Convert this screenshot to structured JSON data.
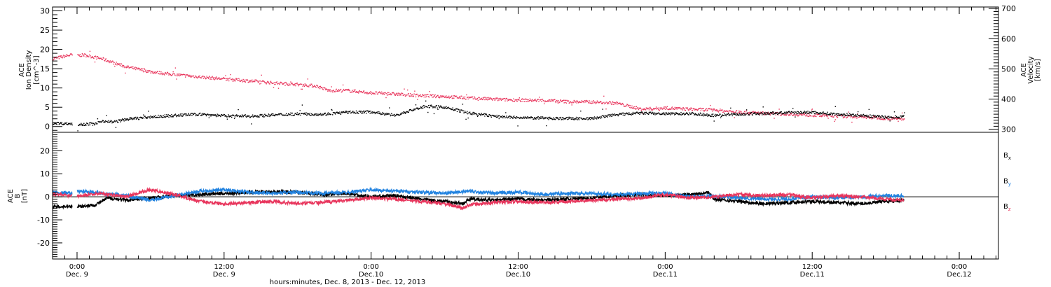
{
  "colors": {
    "black": "#000000",
    "pink": "#e8365d",
    "blue": "#2283e0"
  },
  "x_axis": {
    "title": "hours:minutes, Dec. 8, 2013 - Dec. 12, 2013",
    "ticks": [
      {
        "hours": 24,
        "time": "0:00",
        "date": "Dec. 9"
      },
      {
        "hours": 36,
        "time": "12:00",
        "date": "Dec. 9"
      },
      {
        "hours": 48,
        "time": "0:00",
        "date": "Dec.10"
      },
      {
        "hours": 60,
        "time": "12:00",
        "date": "Dec.10"
      },
      {
        "hours": 72,
        "time": "0:00",
        "date": "Dec.11"
      },
      {
        "hours": 84,
        "time": "12:00",
        "date": "Dec.11"
      },
      {
        "hours": 96,
        "time": "0:00",
        "date": "Dec.12"
      }
    ]
  },
  "chart_data": [
    {
      "type": "scatter",
      "panel": "plasma",
      "x_unit": "hours since Dec. 8, 2013 0:00",
      "xlim": [
        22.0,
        99.2
      ],
      "left_axis": {
        "label_lines": [
          "ACE",
          "Ion Density",
          "[cm^-3]"
        ],
        "ylim": [
          -1.5,
          31
        ],
        "ticks": [
          0,
          5,
          10,
          15,
          20,
          25,
          30
        ]
      },
      "right_axis": {
        "label_lines": [
          "ACE",
          "Velocity",
          "[km/s]"
        ],
        "ylim": [
          290,
          705
        ],
        "ticks": [
          300,
          400,
          500,
          600,
          700
        ]
      },
      "series": [
        {
          "axis": "right",
          "color": "#e8365d",
          "x": [
            22.0,
            23.5,
            24.0,
            24.5,
            26.0,
            28.0,
            30.0,
            32.0,
            34.0,
            36.0,
            38.0,
            40.0,
            42.0,
            43.5,
            44.5,
            46.0,
            48.0,
            50.0,
            52.0,
            54.0,
            56.0,
            58.0,
            60.0,
            62.0,
            64.0,
            66.0,
            68.0,
            70.0,
            72.0,
            74.0,
            76.0,
            78.0,
            80.0,
            82.0,
            84.0,
            86.0,
            88.0,
            90.0,
            91.5
          ],
          "y": [
            535,
            548,
            545,
            548,
            535,
            508,
            492,
            482,
            475,
            468,
            462,
            455,
            450,
            445,
            430,
            430,
            422,
            418,
            413,
            410,
            405,
            401,
            398,
            397,
            393,
            392,
            388,
            368,
            372,
            368,
            365,
            358,
            355,
            352,
            348,
            345,
            342,
            338,
            335
          ]
        },
        {
          "axis": "left",
          "color": "#000000",
          "x": [
            22.0,
            23.0,
            24.0,
            25.5,
            26.0,
            27.0,
            28.0,
            30.0,
            32.0,
            34.0,
            36.0,
            38.0,
            40.0,
            42.0,
            44.0,
            46.0,
            48.0,
            50.0,
            51.5,
            52.5,
            54.0,
            56.0,
            58.0,
            60.0,
            62.0,
            64.0,
            66.0,
            68.0,
            70.0,
            72.0,
            74.0,
            76.0,
            78.0,
            80.0,
            82.0,
            84.0,
            86.0,
            88.0,
            90.0,
            91.5
          ],
          "y": [
            1.0,
            0.9,
            0.7,
            0.8,
            1.6,
            1.3,
            2.0,
            2.6,
            3.0,
            3.3,
            2.9,
            2.8,
            3.1,
            3.4,
            3.3,
            3.8,
            3.9,
            3.0,
            4.6,
            5.4,
            5.1,
            3.6,
            2.8,
            2.4,
            2.3,
            2.2,
            2.2,
            3.2,
            3.6,
            3.4,
            3.5,
            3.0,
            3.3,
            3.5,
            3.7,
            3.8,
            3.3,
            3.0,
            2.5,
            2.7
          ]
        }
      ]
    },
    {
      "type": "line",
      "panel": "magnetic field",
      "x_unit": "hours since Dec. 8, 2013 0:00",
      "xlim": [
        22.0,
        99.2
      ],
      "left_axis": {
        "label_lines": [
          "ACE",
          "B",
          "[nT]"
        ],
        "ylim": [
          -27,
          28
        ],
        "ticks": [
          -20,
          -10,
          0,
          10,
          20
        ]
      },
      "legend": [
        {
          "base": "B",
          "sub": "x",
          "color": "#000000"
        },
        {
          "base": "B",
          "sub": "y",
          "color": "#2283e0"
        },
        {
          "base": "B",
          "sub": "z",
          "color": "#e8365d"
        }
      ],
      "series": [
        {
          "name": "Bx",
          "color": "#000000",
          "x": [
            22.0,
            23.5,
            24.0,
            25.5,
            26.5,
            28.0,
            30.0,
            32.0,
            34.0,
            36.0,
            38.0,
            40.0,
            42.0,
            44.0,
            46.0,
            48.0,
            50.0,
            52.0,
            54.0,
            55.5,
            56.0,
            58.0,
            60.0,
            62.0,
            64.0,
            66.0,
            68.0,
            70.0,
            72.0,
            74.0,
            75.5,
            76.0,
            78.0,
            80.0,
            82.0,
            84.0,
            86.0,
            88.0,
            90.0,
            91.5
          ],
          "y": [
            -4.5,
            -4.0,
            -4.3,
            -3.5,
            -0.5,
            -1.5,
            -0.5,
            0.5,
            1.0,
            1.5,
            2.0,
            2.2,
            2.0,
            1.0,
            1.5,
            0.0,
            0.5,
            -1.0,
            -2.0,
            -3.0,
            -1.0,
            -1.5,
            -1.0,
            -1.5,
            -1.0,
            -0.5,
            0.5,
            1.0,
            0.5,
            1.0,
            2.0,
            -1.0,
            -2.0,
            -3.0,
            -2.5,
            -2.0,
            -2.5,
            -3.0,
            -2.0,
            -1.5
          ]
        },
        {
          "name": "By",
          "color": "#2283e0",
          "x": [
            22.0,
            23.5,
            24.0,
            26.0,
            28.0,
            30.0,
            32.0,
            34.0,
            36.0,
            38.0,
            40.0,
            42.0,
            44.0,
            46.0,
            48.0,
            50.0,
            52.0,
            54.0,
            56.0,
            58.0,
            60.0,
            62.0,
            64.0,
            66.0,
            68.0,
            70.0,
            72.0,
            74.0,
            76.0,
            78.0,
            80.0,
            82.0,
            84.0,
            86.0,
            88.0,
            90.0,
            91.5
          ],
          "y": [
            2.0,
            1.5,
            2.5,
            1.5,
            0.5,
            -1.5,
            0.5,
            2.5,
            3.0,
            2.0,
            1.5,
            2.0,
            1.5,
            2.0,
            3.0,
            2.5,
            2.0,
            1.5,
            2.5,
            1.5,
            2.0,
            1.0,
            1.5,
            1.5,
            1.0,
            1.5,
            1.5,
            0.0,
            0.5,
            -0.5,
            -1.0,
            -1.0,
            0.0,
            -0.5,
            0.0,
            0.5,
            0.5
          ]
        },
        {
          "name": "Bz",
          "color": "#e8365d",
          "x": [
            22.0,
            24.0,
            26.0,
            28.0,
            29.5,
            30.0,
            32.0,
            34.0,
            36.0,
            38.0,
            40.0,
            42.0,
            44.0,
            46.0,
            48.0,
            50.0,
            52.0,
            54.0,
            55.5,
            56.0,
            58.0,
            60.0,
            62.0,
            64.0,
            66.0,
            68.0,
            70.0,
            72.0,
            74.0,
            76.0,
            78.0,
            80.0,
            82.0,
            84.0,
            86.0,
            88.0,
            90.0,
            91.5
          ],
          "y": [
            1.0,
            0.5,
            1.5,
            0.0,
            2.5,
            3.0,
            1.0,
            -2.0,
            -3.0,
            -2.5,
            -2.0,
            -3.0,
            -2.5,
            -1.5,
            -0.5,
            -1.0,
            -2.0,
            -3.0,
            -5.0,
            -3.5,
            -2.5,
            -2.0,
            -2.5,
            -2.0,
            -1.5,
            -1.0,
            -0.5,
            1.0,
            -0.5,
            0.0,
            1.0,
            0.5,
            1.0,
            -0.5,
            0.5,
            0.0,
            -1.0,
            -1.5
          ]
        }
      ]
    }
  ]
}
